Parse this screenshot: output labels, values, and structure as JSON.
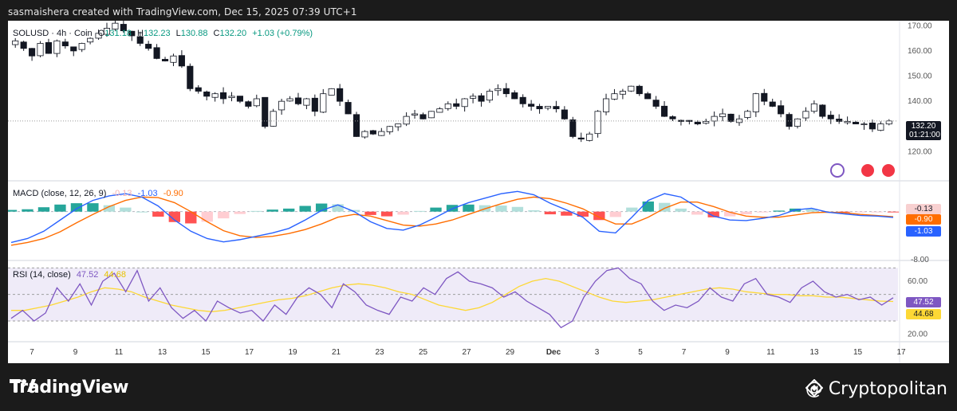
{
  "credit": "sasmaishera created with TradingView.com, Dec 15, 2025 07:39 UTC+1",
  "footer": {
    "brand": "TradingView",
    "watermark": "@ Cryptopolitan"
  },
  "main_legend": {
    "symbol": "SOLUSD · 4h · Coin",
    "open_label": "O",
    "open": "131.18",
    "high_label": "H",
    "high": "132.23",
    "low_label": "L",
    "low": "130.88",
    "close_label": "C",
    "close": "132.20",
    "change": "+1.03 (+0.79%)"
  },
  "price_tag": {
    "price": "132.20",
    "timer": "01:21:00"
  },
  "macd_legend": {
    "name": "MACD (close, 12, 26, 9)",
    "hist": "-0.13",
    "macd": "-1.03",
    "signal": "-0.90"
  },
  "macd_tags": {
    "hist": "-0.13",
    "signal": "-0.90",
    "macd": "-1.03"
  },
  "macd_axis": "-8.00",
  "rsi_legend": {
    "name": "RSI (14, close)",
    "rsi": "47.52",
    "ma": "44.68"
  },
  "rsi_tags": {
    "rsi": "47.52",
    "ma": "44.68"
  },
  "colors": {
    "up": "#089981",
    "down": "#f23645",
    "macd": "#2962ff",
    "signal": "#ff6d00",
    "rsi": "#7e57c2",
    "rsi_ma": "#fdd835",
    "rsi_band": "#7e57c2",
    "hist_up_strong": "#26a69a",
    "hist_up_weak": "#b2dfdb",
    "hist_down_strong": "#ff5252",
    "hist_down_weak": "#ffcdd2"
  },
  "chart_data": [
    {
      "type": "candlestick",
      "title": "SOLUSD · 4h",
      "y_axis_ticks": [
        170,
        160,
        150,
        140,
        130,
        120
      ],
      "ylim": [
        110,
        172
      ],
      "x_tick_labels": [
        "7",
        "9",
        "11",
        "13",
        "15",
        "17",
        "19",
        "21",
        "23",
        "25",
        "27",
        "29",
        "Dec",
        "3",
        "5",
        "7",
        "9",
        "11",
        "13",
        "15",
        "17"
      ],
      "close_path": [
        164,
        161,
        158,
        163,
        159,
        164,
        162,
        160,
        163,
        165,
        167,
        169,
        171,
        168,
        166,
        163,
        161,
        157,
        156,
        158,
        154,
        145,
        144,
        142,
        143,
        141,
        142,
        140,
        138,
        141,
        130,
        136,
        140,
        141,
        139,
        141,
        136,
        143,
        145,
        140,
        135,
        126,
        128,
        127,
        128,
        130,
        131,
        134,
        135,
        133,
        136,
        137,
        139,
        138,
        141,
        142,
        140,
        144,
        145,
        143,
        141,
        139,
        138,
        137,
        138,
        137,
        133,
        126,
        125,
        127,
        136,
        141,
        143,
        144,
        146,
        143,
        141,
        138,
        134,
        133,
        132,
        132,
        131,
        132,
        134,
        135,
        132,
        133,
        136,
        143,
        140,
        138,
        135,
        130,
        133,
        136,
        139,
        134,
        133,
        132,
        132,
        131,
        131,
        129,
        131,
        132.2
      ],
      "current_price": 132.2
    },
    {
      "type": "line",
      "title": "MACD (close, 12, 26, 9)",
      "series": [
        {
          "name": "MACD",
          "values": [
            -5.5,
            -4.8,
            -3.5,
            -1.5,
            0.5,
            2.0,
            2.8,
            3.2,
            2.6,
            1.0,
            -1.5,
            -3.5,
            -4.8,
            -5.4,
            -5.0,
            -4.4,
            -3.8,
            -3.0,
            -1.5,
            0.2,
            1.2,
            0.0,
            -1.8,
            -3.0,
            -3.3,
            -2.4,
            -1.0,
            0.5,
            1.6,
            2.4,
            3.2,
            3.6,
            3.0,
            1.5,
            0.3,
            -1.0,
            -3.5,
            -3.8,
            -1.0,
            2.0,
            3.2,
            2.6,
            0.8,
            -0.8,
            -1.5,
            -1.6,
            -1.2,
            -0.7,
            0.3,
            0.6,
            -0.1,
            -0.4,
            -0.7,
            -0.8,
            -1.03
          ]
        },
        {
          "name": "Signal",
          "values": [
            -6.0,
            -5.5,
            -4.8,
            -3.6,
            -2.0,
            -0.5,
            0.9,
            2.0,
            2.6,
            2.5,
            1.6,
            0.0,
            -1.8,
            -3.4,
            -4.3,
            -4.6,
            -4.4,
            -3.9,
            -3.2,
            -2.2,
            -1.0,
            -0.5,
            -0.8,
            -1.6,
            -2.4,
            -2.6,
            -2.2,
            -1.5,
            -0.5,
            0.5,
            1.4,
            2.2,
            2.6,
            2.3,
            1.5,
            0.5,
            -1.0,
            -2.2,
            -2.2,
            -1.0,
            0.6,
            1.7,
            1.7,
            0.9,
            -0.1,
            -0.8,
            -1.0,
            -1.0,
            -0.6,
            -0.2,
            -0.1,
            -0.2,
            -0.5,
            -0.7,
            -0.9
          ]
        }
      ],
      "last_values": {
        "histogram": -0.13,
        "macd": -1.03,
        "signal": -0.9
      },
      "y_tick_labels": [
        "-8.00"
      ]
    },
    {
      "type": "line",
      "title": "RSI (14, close)",
      "series": [
        {
          "name": "RSI",
          "values": [
            32,
            38,
            30,
            36,
            55,
            45,
            58,
            42,
            60,
            66,
            52,
            68,
            45,
            55,
            40,
            32,
            38,
            30,
            45,
            40,
            36,
            38,
            30,
            42,
            35,
            48,
            55,
            50,
            40,
            58,
            52,
            42,
            38,
            35,
            48,
            45,
            55,
            50,
            62,
            67,
            60,
            58,
            55,
            48,
            52,
            45,
            40,
            35,
            25,
            30,
            48,
            60,
            68,
            70,
            62,
            58,
            45,
            38,
            42,
            40,
            45,
            55,
            48,
            45,
            58,
            62,
            50,
            48,
            44,
            55,
            60,
            52,
            48,
            50,
            46,
            48,
            42,
            47.52
          ]
        },
        {
          "name": "RSI-based MA",
          "values": [
            38,
            38,
            40,
            42,
            45,
            48,
            52,
            55,
            54,
            52,
            48,
            45,
            42,
            40,
            38,
            37,
            38,
            40,
            42,
            44,
            46,
            47,
            49,
            52,
            55,
            57,
            58,
            57,
            55,
            52,
            50,
            46,
            42,
            40,
            38,
            40,
            44,
            50,
            56,
            60,
            62,
            60,
            56,
            52,
            48,
            45,
            44,
            45,
            46,
            48,
            50,
            52,
            54,
            55,
            54,
            52,
            51,
            50,
            50,
            49,
            49,
            48,
            48,
            47,
            46,
            45,
            44.68
          ]
        }
      ],
      "bands": [
        30,
        50,
        70
      ],
      "y_tick_labels": [
        "60.00",
        "20.00"
      ],
      "last_values": {
        "rsi": 47.52,
        "ma": 44.68
      }
    }
  ]
}
